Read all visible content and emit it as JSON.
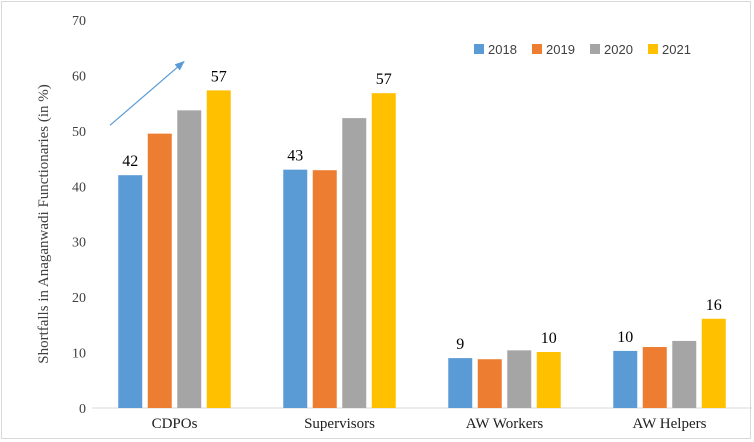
{
  "chart_data": {
    "type": "bar",
    "title": "",
    "xlabel": "",
    "ylabel": "Shortfalls in Anaganwadi Functionaries (in %)",
    "ylim": [
      0,
      70
    ],
    "yticks": [
      0,
      10,
      20,
      30,
      40,
      50,
      60,
      70
    ],
    "grid": false,
    "legend_position": "top-right",
    "categories": [
      "CDPOs",
      "Supervisors",
      "AW Workers",
      "AW Helpers"
    ],
    "series": [
      {
        "name": "2018",
        "color": "#5b9bd5",
        "values": [
          42,
          43,
          9,
          10.3
        ],
        "labels": [
          "42",
          "43",
          "9",
          "10"
        ]
      },
      {
        "name": "2019",
        "color": "#ed7d31",
        "values": [
          49.5,
          42.9,
          8.8,
          11
        ],
        "labels": [
          "",
          "",
          "",
          ""
        ]
      },
      {
        "name": "2020",
        "color": "#a5a5a5",
        "values": [
          53.7,
          52.3,
          10.4,
          12.1
        ],
        "labels": [
          "",
          "",
          "",
          ""
        ]
      },
      {
        "name": "2021",
        "color": "#ffc000",
        "values": [
          57.3,
          56.8,
          10.1,
          16.1
        ],
        "labels": [
          "57",
          "57",
          "10",
          "16"
        ]
      }
    ],
    "annotations": [
      {
        "type": "arrow",
        "color": "#5b9bd5",
        "from": {
          "category": "CDPOs",
          "y": 51
        },
        "to": {
          "category": "CDPOs",
          "y": 62.5
        }
      }
    ]
  }
}
